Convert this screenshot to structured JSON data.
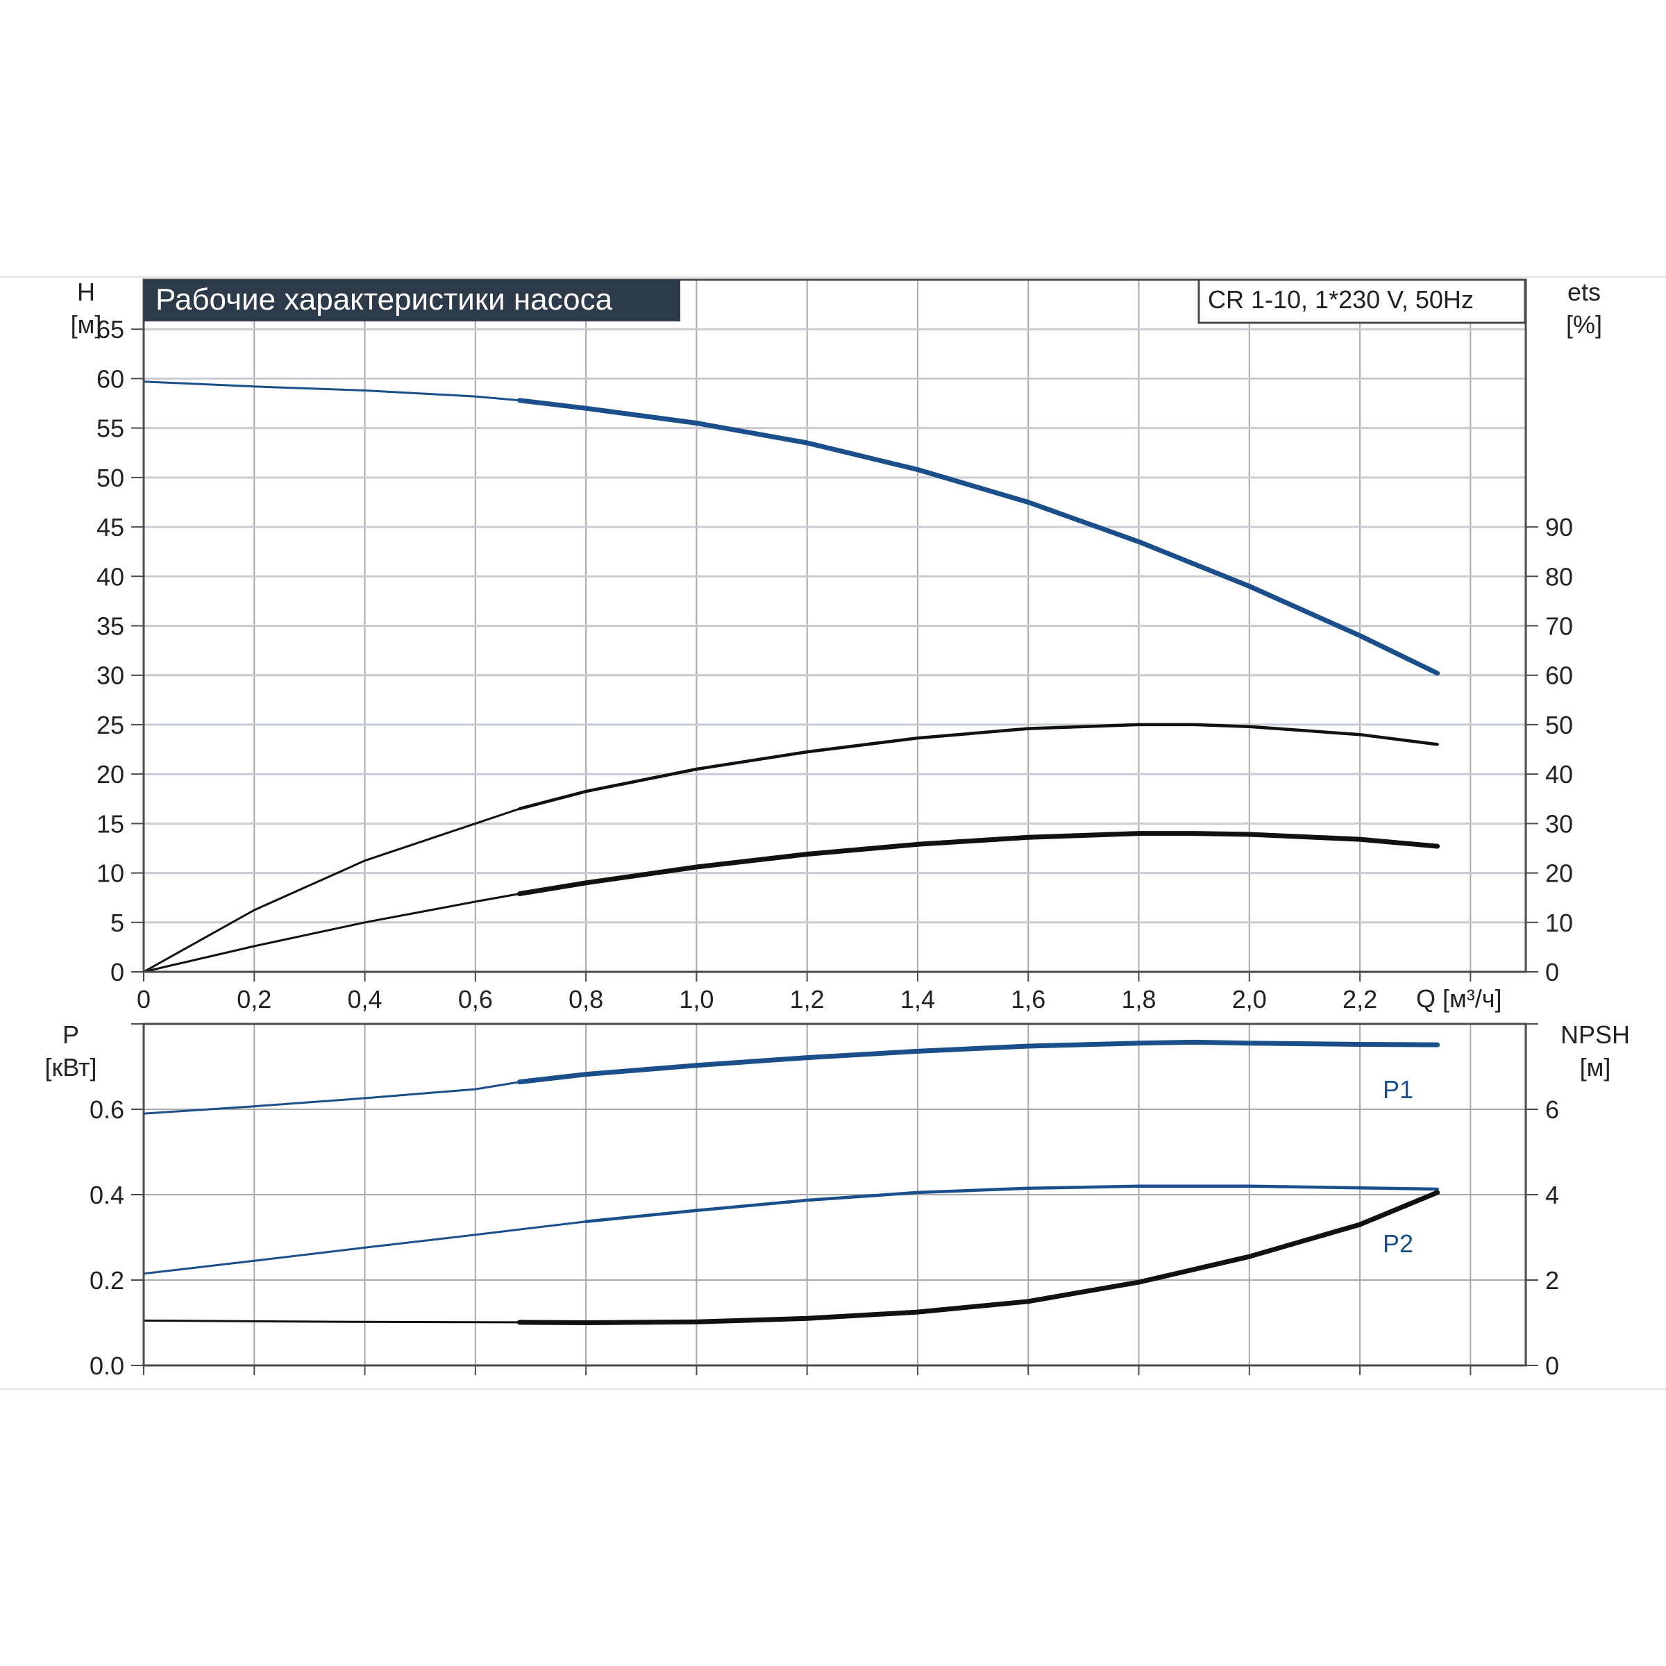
{
  "title": "Рабочие характеристики насоса",
  "model": "CR 1-10, 1*230 V, 50Hz",
  "colors": {
    "blue": "#1b4f8c",
    "black": "#111111",
    "title_bg": "#2d3a4a",
    "grid": "#a9a9a9"
  },
  "top_left_axis": {
    "label": "H",
    "unit": "[м]"
  },
  "top_right_axis": {
    "label": "ets",
    "unit": "[%]"
  },
  "x_axis": {
    "label": "Q [м³/ч]"
  },
  "bottom_left_axis": {
    "label": "P",
    "unit": "[кВт]"
  },
  "bottom_right_axis": {
    "label": "NPSH",
    "unit": "[м]"
  },
  "chart_data": [
    {
      "type": "line",
      "panel": "top",
      "xlim": [
        0,
        2.5
      ],
      "ylim": [
        0,
        70
      ],
      "y2lim": [
        0,
        140
      ],
      "x_ticks": [
        "0",
        "0,2",
        "0,4",
        "0,6",
        "0,8",
        "1,0",
        "1,2",
        "1,4",
        "1,6",
        "1,8",
        "2,0",
        "2,2"
      ],
      "y_ticks": [
        "0",
        "5",
        "10",
        "15",
        "20",
        "25",
        "30",
        "35",
        "40",
        "45",
        "50",
        "55",
        "60",
        "65"
      ],
      "y2_ticks": [
        "0",
        "10",
        "20",
        "30",
        "40",
        "50",
        "60",
        "70",
        "80",
        "90"
      ],
      "series": [
        {
          "axis": "left",
          "color": "blue",
          "x": [
            0,
            0.2,
            0.4,
            0.6,
            0.68,
            0.8,
            1.0,
            1.2,
            1.4,
            1.6,
            1.8,
            2.0,
            2.2,
            2.34
          ],
          "y": [
            59.7,
            59.2,
            58.8,
            58.2,
            57.8,
            57.0,
            55.5,
            53.5,
            50.8,
            47.5,
            43.5,
            39.0,
            34.0,
            30.2
          ]
        },
        {
          "axis": "right",
          "color": "black",
          "x": [
            0,
            0.2,
            0.4,
            0.6,
            0.68,
            0.8,
            1.0,
            1.2,
            1.4,
            1.6,
            1.8,
            1.9,
            2.0,
            2.2,
            2.34
          ],
          "y": [
            0,
            12.5,
            22.5,
            30.0,
            33.0,
            36.5,
            41.0,
            44.5,
            47.3,
            49.2,
            50.0,
            50.0,
            49.6,
            48.0,
            46.0
          ]
        },
        {
          "axis": "left",
          "color": "black",
          "x": [
            0,
            0.2,
            0.4,
            0.6,
            0.68,
            0.8,
            1.0,
            1.2,
            1.4,
            1.6,
            1.8,
            1.9,
            2.0,
            2.2,
            2.34
          ],
          "y": [
            0,
            2.6,
            5.0,
            7.1,
            7.9,
            9.0,
            10.6,
            11.9,
            12.9,
            13.6,
            14.0,
            14.0,
            13.9,
            13.4,
            12.7
          ]
        }
      ]
    },
    {
      "type": "line",
      "panel": "bottom",
      "xlim": [
        0,
        2.5
      ],
      "ylim": [
        0,
        0.8
      ],
      "y2lim": [
        0,
        8
      ],
      "y_ticks": [
        "0.0",
        "0.2",
        "0.4",
        "0.6"
      ],
      "y2_ticks": [
        "0",
        "2",
        "4",
        "6"
      ],
      "series": [
        {
          "name": "P1",
          "axis": "left",
          "color": "blue",
          "x": [
            0,
            0.2,
            0.4,
            0.6,
            0.68,
            0.8,
            1.0,
            1.2,
            1.4,
            1.6,
            1.8,
            1.9,
            2.0,
            2.2,
            2.34
          ],
          "y": [
            0.59,
            0.607,
            0.626,
            0.647,
            0.664,
            0.682,
            0.703,
            0.721,
            0.736,
            0.748,
            0.755,
            0.757,
            0.755,
            0.752,
            0.751
          ]
        },
        {
          "name": "P2",
          "axis": "left",
          "color": "blue",
          "x": [
            0,
            0.2,
            0.4,
            0.6,
            0.8,
            1.0,
            1.2,
            1.4,
            1.6,
            1.8,
            2.0,
            2.2,
            2.34
          ],
          "y": [
            0.215,
            0.245,
            0.276,
            0.306,
            0.337,
            0.363,
            0.387,
            0.405,
            0.415,
            0.42,
            0.42,
            0.416,
            0.413
          ]
        },
        {
          "axis": "right",
          "color": "black",
          "x": [
            0,
            0.4,
            0.68,
            0.8,
            1.0,
            1.2,
            1.4,
            1.6,
            1.8,
            2.0,
            2.2,
            2.34
          ],
          "y": [
            1.05,
            1.02,
            1.01,
            1.0,
            1.02,
            1.1,
            1.25,
            1.5,
            1.95,
            2.55,
            3.3,
            4.05
          ]
        }
      ]
    }
  ]
}
